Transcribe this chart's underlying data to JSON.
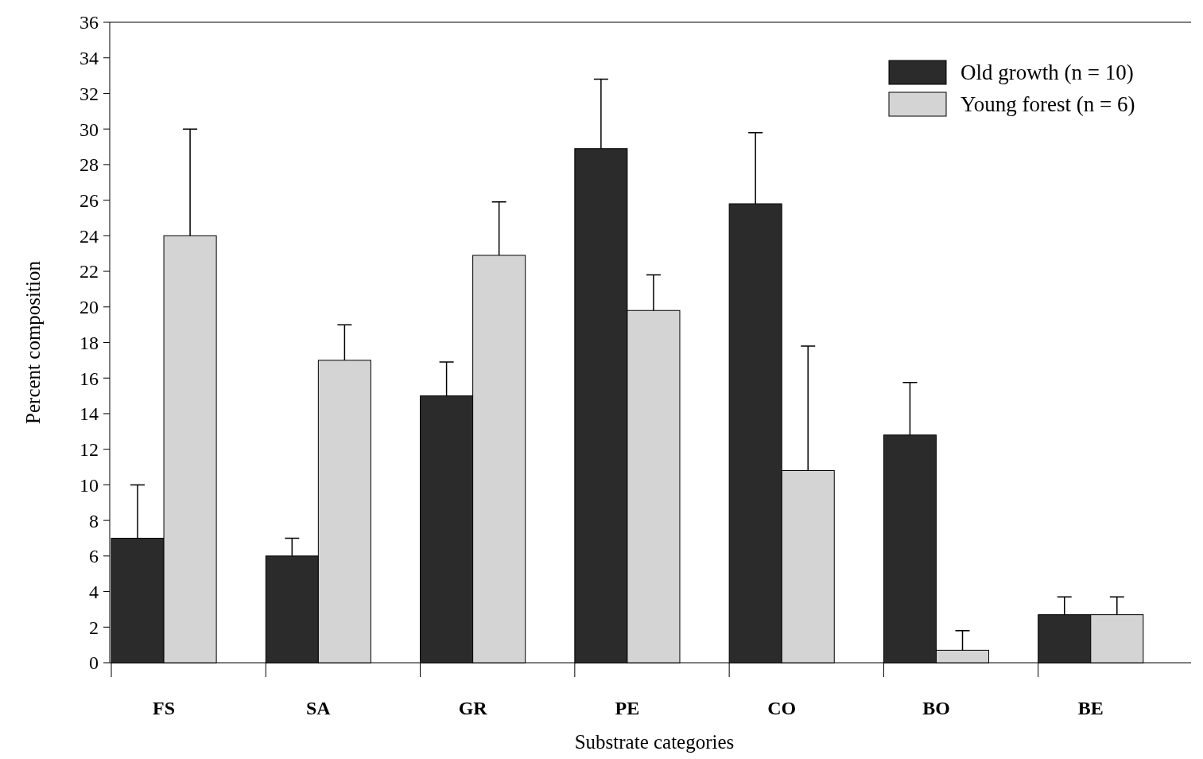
{
  "chart_data": {
    "type": "bar",
    "xlabel": "Substrate categories",
    "ylabel": "Percent composition",
    "categories": [
      "FS",
      "SA",
      "GR",
      "PE",
      "CO",
      "BO",
      "BE"
    ],
    "series": [
      {
        "name": "Old growth (n = 10)",
        "color": "#2b2b2b",
        "values": [
          7,
          6,
          15,
          28.9,
          25.8,
          12.8,
          2.7
        ],
        "errors": [
          [
            7,
            10
          ],
          [
            6,
            7
          ],
          [
            15,
            16.9
          ],
          [
            28.9,
            32.8
          ],
          [
            25.8,
            29.8
          ],
          [
            12.8,
            15.75
          ],
          [
            2.7,
            3.7
          ]
        ]
      },
      {
        "name": "Young forest (n = 6)",
        "color": "#d4d4d4",
        "values": [
          24,
          17,
          22.9,
          19.8,
          10.8,
          0.7,
          2.7
        ],
        "errors": [
          [
            24,
            30
          ],
          [
            17,
            19
          ],
          [
            22.9,
            25.9
          ],
          [
            19.8,
            21.8
          ],
          [
            10.8,
            17.8
          ],
          [
            0.7,
            1.8
          ],
          [
            2.7,
            3.7
          ]
        ]
      }
    ],
    "ylim": [
      0,
      36
    ],
    "yticks": [
      0,
      2,
      4,
      6,
      8,
      10,
      12,
      14,
      16,
      18,
      20,
      22,
      24,
      26,
      28,
      30,
      32,
      34,
      36
    ],
    "grid": false,
    "legend": "top right"
  }
}
